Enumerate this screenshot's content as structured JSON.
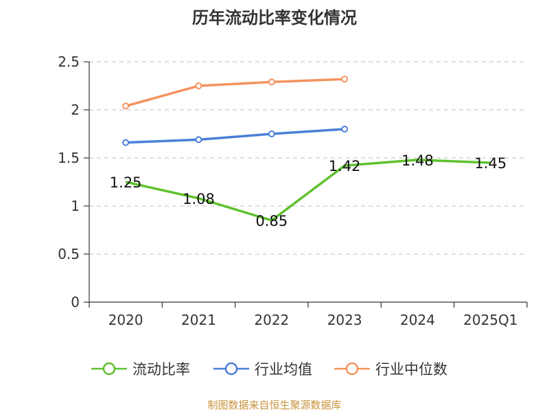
{
  "title": "历年流动比率变化情况",
  "source": "制图数据来自恒生聚源数据库",
  "colors": {
    "current_ratio": "#5ec12e",
    "industry_avg": "#4a7fd8",
    "industry_median": "#f5925e",
    "grid": "#cccccc",
    "axis": "#333333"
  },
  "chart_data": {
    "type": "line",
    "title": "历年流动比率变化情况",
    "xlabel": "",
    "ylabel": "",
    "categories": [
      "2020",
      "2021",
      "2022",
      "2023",
      "2024",
      "2025Q1"
    ],
    "ylim": [
      0,
      2.5
    ],
    "yticks": [
      "0",
      "0.5",
      "1",
      "1.5",
      "2",
      "2.5"
    ],
    "grid": true,
    "legend_position": "bottom",
    "series": [
      {
        "name": "流动比率",
        "color": "#5ec12e",
        "values": [
          1.25,
          1.08,
          0.85,
          1.42,
          1.48,
          1.45
        ],
        "labels": [
          "1.25",
          "1.08",
          "0.85",
          "1.42",
          "1.48",
          "1.45"
        ]
      },
      {
        "name": "行业均值",
        "color": "#4a7fd8",
        "values": [
          1.66,
          1.69,
          1.75,
          1.8,
          null,
          null
        ]
      },
      {
        "name": "行业中位数",
        "color": "#f5925e",
        "values": [
          2.04,
          2.25,
          2.29,
          2.32,
          null,
          null
        ]
      }
    ]
  }
}
